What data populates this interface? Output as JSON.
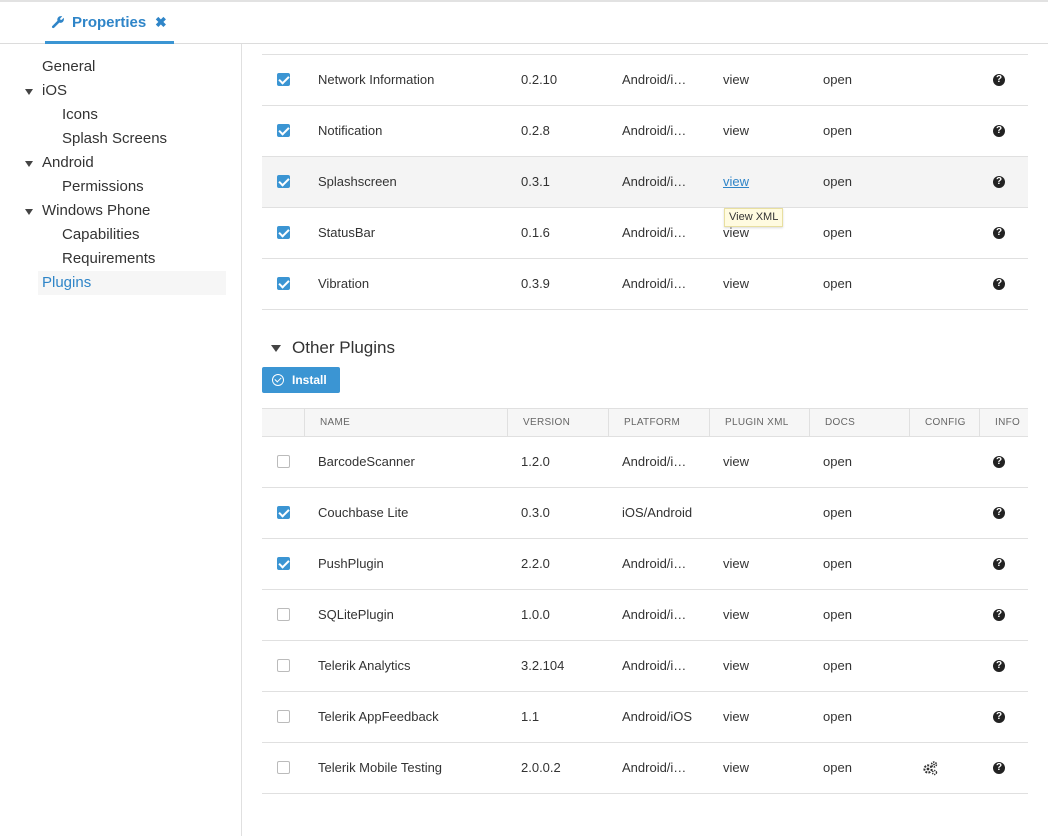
{
  "tab": {
    "label": "Properties",
    "close": "✖"
  },
  "sidebar": {
    "items": [
      {
        "label": "General"
      },
      {
        "label": "iOS"
      },
      {
        "label": "Icons"
      },
      {
        "label": "Splash Screens"
      },
      {
        "label": "Android"
      },
      {
        "label": "Permissions"
      },
      {
        "label": "Windows Phone"
      },
      {
        "label": "Capabilities"
      },
      {
        "label": "Requirements"
      },
      {
        "label": "Plugins"
      }
    ]
  },
  "core_plugins": [
    {
      "checked": true,
      "name": "Network Information",
      "version": "0.2.10",
      "platform": "Android/i…",
      "xml": "view",
      "docs": "open",
      "info": "?"
    },
    {
      "checked": true,
      "name": "Notification",
      "version": "0.2.8",
      "platform": "Android/i…",
      "xml": "view",
      "docs": "open",
      "info": "?"
    },
    {
      "checked": true,
      "name": "Splashscreen",
      "version": "0.3.1",
      "platform": "Android/i…",
      "xml": "view",
      "docs": "open",
      "info": "?"
    },
    {
      "checked": true,
      "name": "StatusBar",
      "version": "0.1.6",
      "platform": "Android/i…",
      "xml": "view",
      "docs": "open",
      "info": "?"
    },
    {
      "checked": true,
      "name": "Vibration",
      "version": "0.3.9",
      "platform": "Android/i…",
      "xml": "view",
      "docs": "open",
      "info": "?"
    }
  ],
  "tooltip": "View XML",
  "other_section": {
    "title": "Other Plugins",
    "install_label": "Install"
  },
  "columns": [
    "NAME",
    "VERSION",
    "PLATFORM",
    "PLUGIN XML",
    "DOCS",
    "CONFIG",
    "INFO"
  ],
  "other_plugins": [
    {
      "checked": false,
      "name": "BarcodeScanner",
      "version": "1.2.0",
      "platform": "Android/i…",
      "xml": "view",
      "docs": "open",
      "info": "?"
    },
    {
      "checked": true,
      "name": "Couchbase Lite",
      "version": "0.3.0",
      "platform": "iOS/Android",
      "xml": "",
      "docs": "open",
      "info": "?"
    },
    {
      "checked": true,
      "name": "PushPlugin",
      "version": "2.2.0",
      "platform": "Android/i…",
      "xml": "view",
      "docs": "open",
      "info": "?"
    },
    {
      "checked": false,
      "name": "SQLitePlugin",
      "version": "1.0.0",
      "platform": "Android/i…",
      "xml": "view",
      "docs": "open",
      "info": "?"
    },
    {
      "checked": false,
      "name": "Telerik Analytics",
      "version": "3.2.104",
      "platform": "Android/i…",
      "xml": "view",
      "docs": "open",
      "info": "?"
    },
    {
      "checked": false,
      "name": "Telerik AppFeedback",
      "version": "1.1",
      "platform": "Android/iOS",
      "xml": "view",
      "docs": "open",
      "info": "?"
    },
    {
      "checked": false,
      "name": "Telerik Mobile Testing",
      "version": "2.0.0.2",
      "platform": "Android/i…",
      "xml": "view",
      "docs": "open",
      "config_icon": "gears-icon",
      "info": "?"
    }
  ],
  "colors": {
    "accent": "#3b95d3",
    "link": "#2f85c8"
  }
}
